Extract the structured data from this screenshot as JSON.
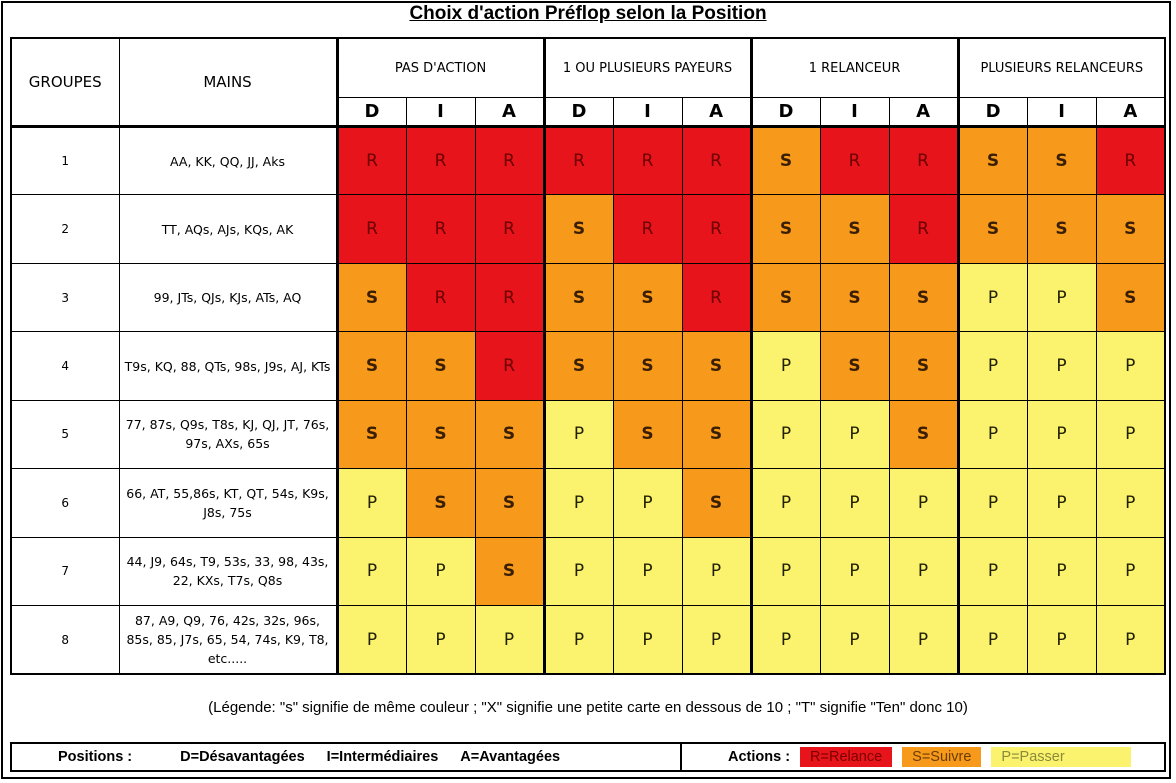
{
  "title": "Choix d'action Préflop selon la Position",
  "headers": {
    "groups": "GROUPES",
    "hands": "MAINS",
    "categories": [
      "PAS D'ACTION",
      "1 OU PLUSIEURS PAYEURS",
      "1 RELANCEUR",
      "PLUSIEURS RELANCEURS"
    ],
    "positions": [
      "D",
      "I",
      "A"
    ]
  },
  "rows": [
    {
      "group": "1",
      "hands": "AA, KK, QQ, JJ, Aks",
      "actions": [
        "R",
        "R",
        "R",
        "R",
        "R",
        "R",
        "S",
        "R",
        "R",
        "S",
        "S",
        "R"
      ]
    },
    {
      "group": "2",
      "hands": "TT, AQs, AJs, KQs, AK",
      "actions": [
        "R",
        "R",
        "R",
        "S",
        "R",
        "R",
        "S",
        "S",
        "R",
        "S",
        "S",
        "S"
      ]
    },
    {
      "group": "3",
      "hands": "99, JTs, QJs, KJs, ATs, AQ",
      "actions": [
        "S",
        "R",
        "R",
        "S",
        "S",
        "R",
        "S",
        "S",
        "S",
        "P",
        "P",
        "S"
      ]
    },
    {
      "group": "4",
      "hands": "T9s, KQ, 88, QTs, 98s, J9s, AJ, KTs",
      "actions": [
        "S",
        "S",
        "R",
        "S",
        "S",
        "S",
        "P",
        "S",
        "S",
        "P",
        "P",
        "P"
      ]
    },
    {
      "group": "5",
      "hands": "77, 87s, Q9s, T8s, KJ, QJ, JT, 76s, 97s, AXs, 65s",
      "actions": [
        "S",
        "S",
        "S",
        "P",
        "S",
        "S",
        "P",
        "P",
        "S",
        "P",
        "P",
        "P"
      ]
    },
    {
      "group": "6",
      "hands": "66, AT, 55,86s, KT, QT, 54s, K9s, J8s, 75s",
      "actions": [
        "P",
        "S",
        "S",
        "P",
        "P",
        "S",
        "P",
        "P",
        "P",
        "P",
        "P",
        "P"
      ]
    },
    {
      "group": "7",
      "hands": "44, J9, 64s, T9, 53s, 33, 98, 43s, 22, KXs, T7s, Q8s",
      "actions": [
        "P",
        "P",
        "S",
        "P",
        "P",
        "P",
        "P",
        "P",
        "P",
        "P",
        "P",
        "P"
      ]
    },
    {
      "group": "8",
      "hands": "87, A9, Q9, 76, 42s, 32s, 96s, 85s, 85, J7s, 65, 54, 74s, K9, T8, etc.....",
      "actions": [
        "P",
        "P",
        "P",
        "P",
        "P",
        "P",
        "P",
        "P",
        "P",
        "P",
        "P",
        "P"
      ]
    }
  ],
  "legend": "(Légende: \"s\" signifie de même couleur ; \"X\" signifie une petite carte en dessous de 10 ; \"T\" signifie \"Ten\" donc 10)",
  "footer": {
    "positions_label": "Positions :",
    "position_items": [
      "D=Désavantagées",
      "I=Intermédiaires",
      "A=Avantagées"
    ],
    "actions_label": "Actions :",
    "action_items": [
      "R=Relance",
      "S=Suivre",
      "P=Passer"
    ]
  },
  "colors": {
    "R": "#e8141b",
    "S": "#f79a1c",
    "P": "#fbf36d"
  }
}
